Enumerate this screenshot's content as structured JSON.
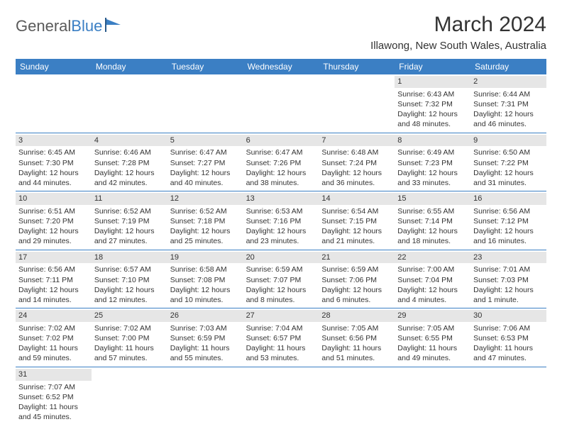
{
  "logo": {
    "text1": "General",
    "text2": "Blue"
  },
  "title": "March 2024",
  "location": "Illawong, New South Wales, Australia",
  "header_bg": "#3b7fc4",
  "day_bg": "#e6e6e6",
  "text_color": "#333333",
  "days": [
    "Sunday",
    "Monday",
    "Tuesday",
    "Wednesday",
    "Thursday",
    "Friday",
    "Saturday"
  ],
  "weeks": [
    [
      null,
      null,
      null,
      null,
      null,
      {
        "n": "1",
        "sr": "6:43 AM",
        "ss": "7:32 PM",
        "dl": "12 hours and 48 minutes."
      },
      {
        "n": "2",
        "sr": "6:44 AM",
        "ss": "7:31 PM",
        "dl": "12 hours and 46 minutes."
      }
    ],
    [
      {
        "n": "3",
        "sr": "6:45 AM",
        "ss": "7:30 PM",
        "dl": "12 hours and 44 minutes."
      },
      {
        "n": "4",
        "sr": "6:46 AM",
        "ss": "7:28 PM",
        "dl": "12 hours and 42 minutes."
      },
      {
        "n": "5",
        "sr": "6:47 AM",
        "ss": "7:27 PM",
        "dl": "12 hours and 40 minutes."
      },
      {
        "n": "6",
        "sr": "6:47 AM",
        "ss": "7:26 PM",
        "dl": "12 hours and 38 minutes."
      },
      {
        "n": "7",
        "sr": "6:48 AM",
        "ss": "7:24 PM",
        "dl": "12 hours and 36 minutes."
      },
      {
        "n": "8",
        "sr": "6:49 AM",
        "ss": "7:23 PM",
        "dl": "12 hours and 33 minutes."
      },
      {
        "n": "9",
        "sr": "6:50 AM",
        "ss": "7:22 PM",
        "dl": "12 hours and 31 minutes."
      }
    ],
    [
      {
        "n": "10",
        "sr": "6:51 AM",
        "ss": "7:20 PM",
        "dl": "12 hours and 29 minutes."
      },
      {
        "n": "11",
        "sr": "6:52 AM",
        "ss": "7:19 PM",
        "dl": "12 hours and 27 minutes."
      },
      {
        "n": "12",
        "sr": "6:52 AM",
        "ss": "7:18 PM",
        "dl": "12 hours and 25 minutes."
      },
      {
        "n": "13",
        "sr": "6:53 AM",
        "ss": "7:16 PM",
        "dl": "12 hours and 23 minutes."
      },
      {
        "n": "14",
        "sr": "6:54 AM",
        "ss": "7:15 PM",
        "dl": "12 hours and 21 minutes."
      },
      {
        "n": "15",
        "sr": "6:55 AM",
        "ss": "7:14 PM",
        "dl": "12 hours and 18 minutes."
      },
      {
        "n": "16",
        "sr": "6:56 AM",
        "ss": "7:12 PM",
        "dl": "12 hours and 16 minutes."
      }
    ],
    [
      {
        "n": "17",
        "sr": "6:56 AM",
        "ss": "7:11 PM",
        "dl": "12 hours and 14 minutes."
      },
      {
        "n": "18",
        "sr": "6:57 AM",
        "ss": "7:10 PM",
        "dl": "12 hours and 12 minutes."
      },
      {
        "n": "19",
        "sr": "6:58 AM",
        "ss": "7:08 PM",
        "dl": "12 hours and 10 minutes."
      },
      {
        "n": "20",
        "sr": "6:59 AM",
        "ss": "7:07 PM",
        "dl": "12 hours and 8 minutes."
      },
      {
        "n": "21",
        "sr": "6:59 AM",
        "ss": "7:06 PM",
        "dl": "12 hours and 6 minutes."
      },
      {
        "n": "22",
        "sr": "7:00 AM",
        "ss": "7:04 PM",
        "dl": "12 hours and 4 minutes."
      },
      {
        "n": "23",
        "sr": "7:01 AM",
        "ss": "7:03 PM",
        "dl": "12 hours and 1 minute."
      }
    ],
    [
      {
        "n": "24",
        "sr": "7:02 AM",
        "ss": "7:02 PM",
        "dl": "11 hours and 59 minutes."
      },
      {
        "n": "25",
        "sr": "7:02 AM",
        "ss": "7:00 PM",
        "dl": "11 hours and 57 minutes."
      },
      {
        "n": "26",
        "sr": "7:03 AM",
        "ss": "6:59 PM",
        "dl": "11 hours and 55 minutes."
      },
      {
        "n": "27",
        "sr": "7:04 AM",
        "ss": "6:57 PM",
        "dl": "11 hours and 53 minutes."
      },
      {
        "n": "28",
        "sr": "7:05 AM",
        "ss": "6:56 PM",
        "dl": "11 hours and 51 minutes."
      },
      {
        "n": "29",
        "sr": "7:05 AM",
        "ss": "6:55 PM",
        "dl": "11 hours and 49 minutes."
      },
      {
        "n": "30",
        "sr": "7:06 AM",
        "ss": "6:53 PM",
        "dl": "11 hours and 47 minutes."
      }
    ],
    [
      {
        "n": "31",
        "sr": "7:07 AM",
        "ss": "6:52 PM",
        "dl": "11 hours and 45 minutes."
      },
      null,
      null,
      null,
      null,
      null,
      null
    ]
  ],
  "labels": {
    "sunrise": "Sunrise:",
    "sunset": "Sunset:",
    "daylight": "Daylight:"
  }
}
